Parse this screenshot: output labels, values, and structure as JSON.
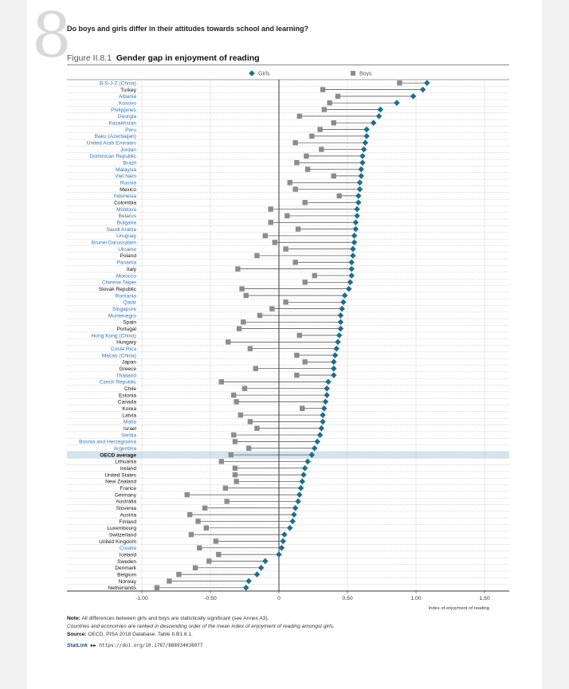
{
  "chapter": {
    "number": "8",
    "title": "Do boys and girls differ in their attitudes towards school and learning?"
  },
  "figure": {
    "label": "Figure II.8.1",
    "title": "Gender gap in enjoyment of reading"
  },
  "chart_data": {
    "type": "dot",
    "title": "Gender gap in enjoyment of reading",
    "xlabel": "Index of enjoyment of reading",
    "xlim": [
      -1.0,
      1.5
    ],
    "x_ticks": [
      "-1.00",
      "-0.50",
      "0",
      "0.50",
      "1.00",
      "1.50"
    ],
    "legend": [
      "Girls",
      "Boys"
    ],
    "legend_position": "top",
    "grid": true,
    "highlight": "OECD average",
    "colors": {
      "girls": "#1f6e8c",
      "boys": "#8c8c8c",
      "label_blue": "#2e75b6",
      "label_black": "#111111",
      "highlight_band": "#d3e4ef"
    },
    "rows": [
      {
        "name": "B-S-J-Z (China)",
        "girls": 1.08,
        "boys": 0.88,
        "color": "blue"
      },
      {
        "name": "Turkey",
        "girls": 1.05,
        "boys": 0.32,
        "color": "black"
      },
      {
        "name": "Albania",
        "girls": 0.98,
        "boys": 0.43,
        "color": "blue"
      },
      {
        "name": "Kosovo",
        "girls": 0.86,
        "boys": 0.37,
        "color": "blue"
      },
      {
        "name": "Philippines",
        "girls": 0.74,
        "boys": 0.33,
        "color": "blue"
      },
      {
        "name": "Georgia",
        "girls": 0.73,
        "boys": 0.15,
        "color": "blue"
      },
      {
        "name": "Kazakhstan",
        "girls": 0.69,
        "boys": 0.4,
        "color": "blue"
      },
      {
        "name": "Peru",
        "girls": 0.64,
        "boys": 0.3,
        "color": "blue"
      },
      {
        "name": "Baku (Azerbaijan)",
        "girls": 0.64,
        "boys": 0.24,
        "color": "blue"
      },
      {
        "name": "United Arab Emirates",
        "girls": 0.63,
        "boys": 0.12,
        "color": "blue"
      },
      {
        "name": "Jordan",
        "girls": 0.62,
        "boys": 0.31,
        "color": "blue"
      },
      {
        "name": "Dominican Republic",
        "girls": 0.61,
        "boys": 0.2,
        "color": "blue"
      },
      {
        "name": "Brazil",
        "girls": 0.61,
        "boys": 0.13,
        "color": "blue"
      },
      {
        "name": "Malaysia",
        "girls": 0.6,
        "boys": 0.21,
        "color": "blue"
      },
      {
        "name": "Viet Nam",
        "girls": 0.6,
        "boys": 0.4,
        "color": "blue"
      },
      {
        "name": "Russia",
        "girls": 0.59,
        "boys": 0.08,
        "color": "blue"
      },
      {
        "name": "Mexico",
        "girls": 0.59,
        "boys": 0.12,
        "color": "black"
      },
      {
        "name": "Indonesia",
        "girls": 0.58,
        "boys": 0.44,
        "color": "blue"
      },
      {
        "name": "Colombia",
        "girls": 0.58,
        "boys": 0.19,
        "color": "black"
      },
      {
        "name": "Moldova",
        "girls": 0.57,
        "boys": -0.06,
        "color": "blue"
      },
      {
        "name": "Belarus",
        "girls": 0.57,
        "boys": 0.06,
        "color": "blue"
      },
      {
        "name": "Bulgaria",
        "girls": 0.56,
        "boys": -0.06,
        "color": "blue"
      },
      {
        "name": "Saudi Arabia",
        "girls": 0.56,
        "boys": 0.14,
        "color": "blue"
      },
      {
        "name": "Uruguay",
        "girls": 0.55,
        "boys": -0.1,
        "color": "blue"
      },
      {
        "name": "Brunei Darussalam",
        "girls": 0.55,
        "boys": -0.03,
        "color": "blue"
      },
      {
        "name": "Ukraine",
        "girls": 0.54,
        "boys": 0.05,
        "color": "blue"
      },
      {
        "name": "Poland",
        "girls": 0.54,
        "boys": -0.16,
        "color": "black"
      },
      {
        "name": "Panama",
        "girls": 0.53,
        "boys": 0.12,
        "color": "blue"
      },
      {
        "name": "Italy",
        "girls": 0.53,
        "boys": -0.3,
        "color": "black"
      },
      {
        "name": "Morocco",
        "girls": 0.53,
        "boys": 0.26,
        "color": "blue"
      },
      {
        "name": "Chinese Taipei",
        "girls": 0.52,
        "boys": 0.19,
        "color": "blue"
      },
      {
        "name": "Slovak Republic",
        "girls": 0.51,
        "boys": -0.27,
        "color": "black"
      },
      {
        "name": "Romania",
        "girls": 0.48,
        "boys": -0.24,
        "color": "blue"
      },
      {
        "name": "Qatar",
        "girls": 0.47,
        "boys": 0.05,
        "color": "blue"
      },
      {
        "name": "Singapore",
        "girls": 0.46,
        "boys": -0.05,
        "color": "blue"
      },
      {
        "name": "Montenegro",
        "girls": 0.45,
        "boys": -0.14,
        "color": "blue"
      },
      {
        "name": "Spain",
        "girls": 0.45,
        "boys": -0.26,
        "color": "black"
      },
      {
        "name": "Portugal",
        "girls": 0.45,
        "boys": -0.29,
        "color": "black"
      },
      {
        "name": "Hong Kong (China)",
        "girls": 0.44,
        "boys": 0.15,
        "color": "blue"
      },
      {
        "name": "Hungary",
        "girls": 0.43,
        "boys": -0.37,
        "color": "black"
      },
      {
        "name": "Costa Rica",
        "girls": 0.42,
        "boys": -0.21,
        "color": "blue"
      },
      {
        "name": "Macao (China)",
        "girls": 0.41,
        "boys": 0.13,
        "color": "blue"
      },
      {
        "name": "Japan",
        "girls": 0.4,
        "boys": 0.19,
        "color": "black"
      },
      {
        "name": "Greece",
        "girls": 0.4,
        "boys": -0.17,
        "color": "black"
      },
      {
        "name": "Thailand",
        "girls": 0.4,
        "boys": 0.13,
        "color": "blue"
      },
      {
        "name": "Czech Republic",
        "girls": 0.36,
        "boys": -0.42,
        "color": "blue"
      },
      {
        "name": "Chile",
        "girls": 0.35,
        "boys": -0.25,
        "color": "black"
      },
      {
        "name": "Estonia",
        "girls": 0.35,
        "boys": -0.33,
        "color": "black"
      },
      {
        "name": "Canada",
        "girls": 0.34,
        "boys": -0.31,
        "color": "black"
      },
      {
        "name": "Korea",
        "girls": 0.33,
        "boys": 0.17,
        "color": "black"
      },
      {
        "name": "Latvia",
        "girls": 0.32,
        "boys": -0.28,
        "color": "black"
      },
      {
        "name": "Malta",
        "girls": 0.32,
        "boys": -0.21,
        "color": "blue"
      },
      {
        "name": "Israel",
        "girls": 0.31,
        "boys": -0.16,
        "color": "black"
      },
      {
        "name": "Serbia",
        "girls": 0.3,
        "boys": -0.33,
        "color": "blue"
      },
      {
        "name": "Bosnia and Herzegovina",
        "girls": 0.28,
        "boys": -0.32,
        "color": "blue"
      },
      {
        "name": "Argentina",
        "girls": 0.26,
        "boys": -0.22,
        "color": "blue"
      },
      {
        "name": "OECD average",
        "girls": 0.24,
        "boys": -0.35,
        "color": "black",
        "bold": true
      },
      {
        "name": "Lithuania",
        "girls": 0.21,
        "boys": -0.42,
        "color": "black"
      },
      {
        "name": "Ireland",
        "girls": 0.19,
        "boys": -0.32,
        "color": "black"
      },
      {
        "name": "United States",
        "girls": 0.18,
        "boys": -0.32,
        "color": "black"
      },
      {
        "name": "New Zealand",
        "girls": 0.17,
        "boys": -0.31,
        "color": "black"
      },
      {
        "name": "France",
        "girls": 0.16,
        "boys": -0.39,
        "color": "black"
      },
      {
        "name": "Germany",
        "girls": 0.15,
        "boys": -0.67,
        "color": "black"
      },
      {
        "name": "Australia",
        "girls": 0.14,
        "boys": -0.38,
        "color": "black"
      },
      {
        "name": "Slovenia",
        "girls": 0.12,
        "boys": -0.54,
        "color": "black"
      },
      {
        "name": "Austria",
        "girls": 0.11,
        "boys": -0.65,
        "color": "black"
      },
      {
        "name": "Finland",
        "girls": 0.1,
        "boys": -0.59,
        "color": "black"
      },
      {
        "name": "Luxembourg",
        "girls": 0.08,
        "boys": -0.53,
        "color": "black"
      },
      {
        "name": "Switzerland",
        "girls": 0.04,
        "boys": -0.64,
        "color": "black"
      },
      {
        "name": "United Kingdom",
        "girls": 0.03,
        "boys": -0.46,
        "color": "black"
      },
      {
        "name": "Croatia",
        "girls": 0.02,
        "boys": -0.58,
        "color": "blue"
      },
      {
        "name": "Iceland",
        "girls": 0.0,
        "boys": -0.44,
        "color": "black"
      },
      {
        "name": "Sweden",
        "girls": -0.1,
        "boys": -0.51,
        "color": "black"
      },
      {
        "name": "Denmark",
        "girls": -0.13,
        "boys": -0.61,
        "color": "black"
      },
      {
        "name": "Belgium",
        "girls": -0.16,
        "boys": -0.73,
        "color": "black"
      },
      {
        "name": "Norway",
        "girls": -0.22,
        "boys": -0.8,
        "color": "black"
      },
      {
        "name": "Netherlands",
        "girls": -0.24,
        "boys": -0.89,
        "color": "black"
      }
    ]
  },
  "notes": {
    "note_label": "Note:",
    "note_text": "All differences between girls and boys are statistically significant (see Annex A3).",
    "ranking_text": "Countries and economies are ranked in descending order of the mean index of enjoyment of reading amongst girls.",
    "source_label": "Source:",
    "source_text": "OECD, PISA 2018 Database, Table II.B1.8.1.",
    "statlink_label": "StatLink",
    "statlink_url": "https://doi.org/10.1787/888934038077"
  }
}
